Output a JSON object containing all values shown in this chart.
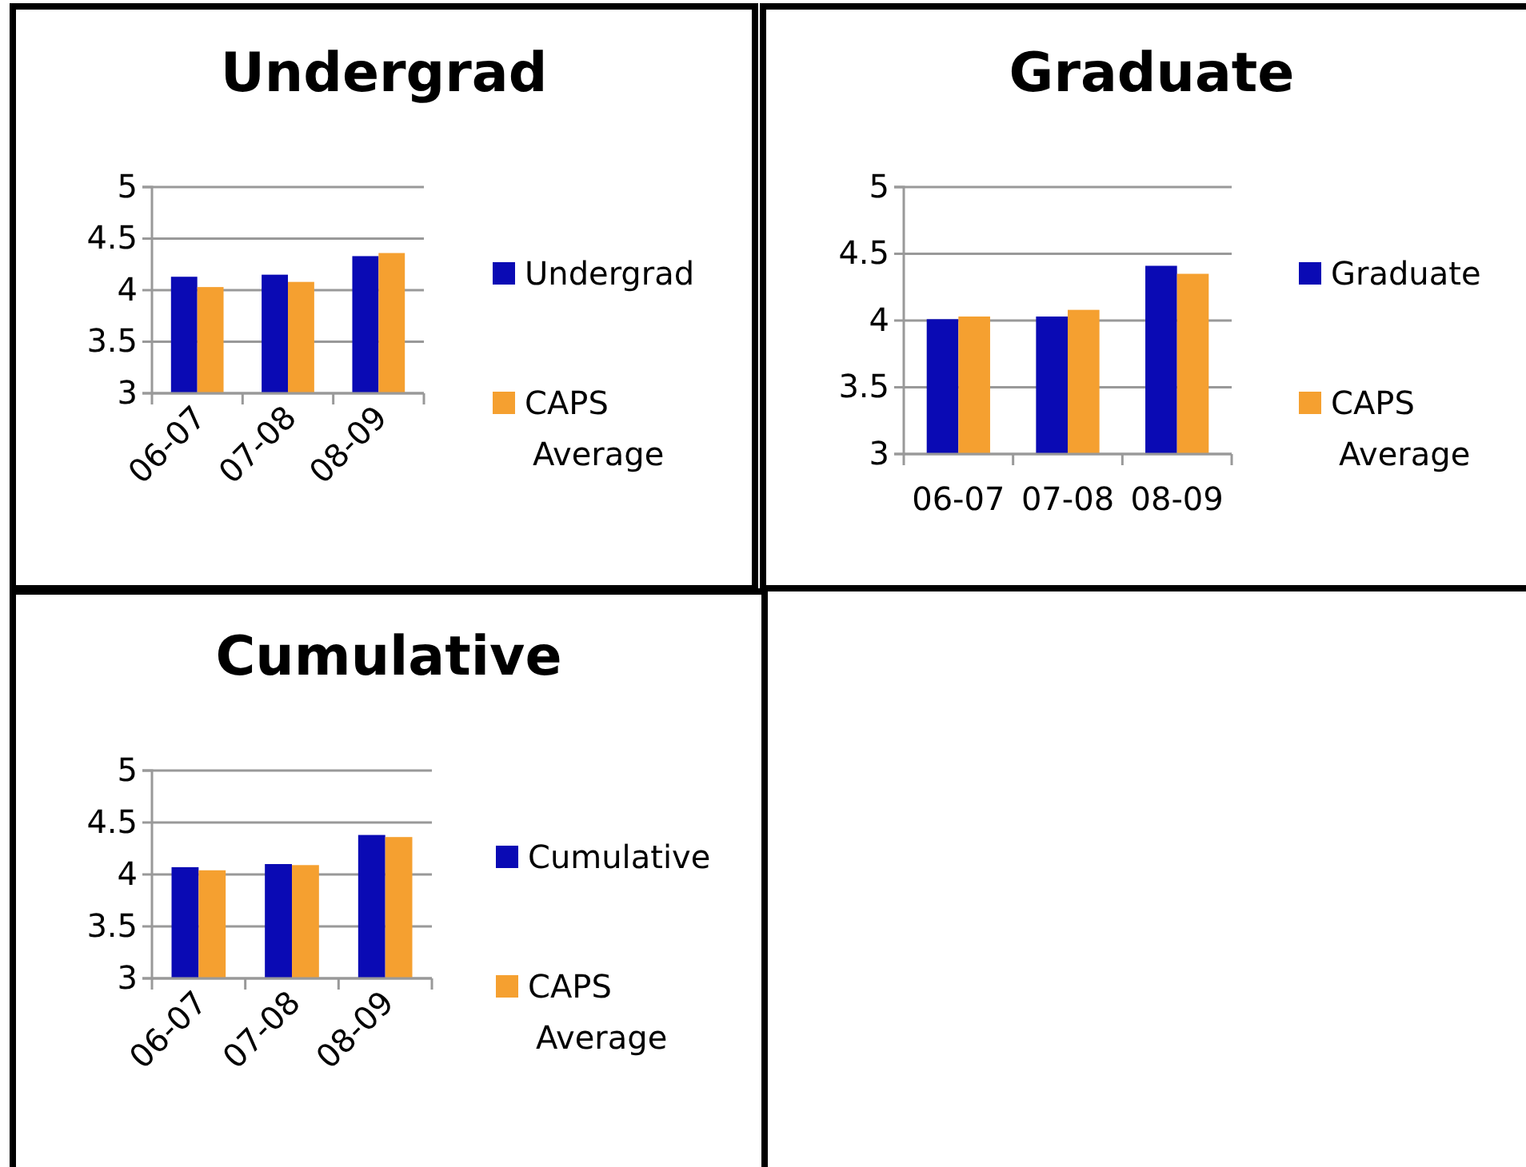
{
  "chart_data": [
    {
      "type": "bar",
      "title": "Undergrad",
      "categories": [
        "06-07",
        "07-08",
        "08-09"
      ],
      "series": [
        {
          "name": "Undergrad",
          "color": "#0a0ab4",
          "values": [
            4.13,
            4.15,
            4.33
          ]
        },
        {
          "name": "CAPS Average",
          "color": "#f5a030",
          "values": [
            4.03,
            4.08,
            4.36
          ]
        }
      ],
      "ylim": [
        3,
        5
      ],
      "yticks": [
        3,
        3.5,
        4,
        4.5,
        5
      ],
      "grid": "y",
      "legend": "right"
    },
    {
      "type": "bar",
      "title": "Graduate",
      "categories": [
        "06-07",
        "07-08",
        "08-09"
      ],
      "series": [
        {
          "name": "Graduate",
          "color": "#0a0ab4",
          "values": [
            4.01,
            4.03,
            4.41
          ]
        },
        {
          "name": "CAPS Average",
          "color": "#f5a030",
          "values": [
            4.03,
            4.08,
            4.35
          ]
        }
      ],
      "ylim": [
        3,
        5
      ],
      "yticks": [
        3,
        3.5,
        4,
        4.5,
        5
      ],
      "grid": "y",
      "legend": "right"
    },
    {
      "type": "bar",
      "title": "Cumulative",
      "categories": [
        "06-07",
        "07-08",
        "08-09"
      ],
      "series": [
        {
          "name": "Cumulative",
          "color": "#0a0ab4",
          "values": [
            4.07,
            4.1,
            4.38
          ]
        },
        {
          "name": "CAPS Average",
          "color": "#f5a030",
          "values": [
            4.04,
            4.09,
            4.36
          ]
        }
      ],
      "ylim": [
        3,
        5
      ],
      "yticks": [
        3,
        3.5,
        4,
        4.5,
        5
      ],
      "grid": "y",
      "legend": "right"
    }
  ]
}
